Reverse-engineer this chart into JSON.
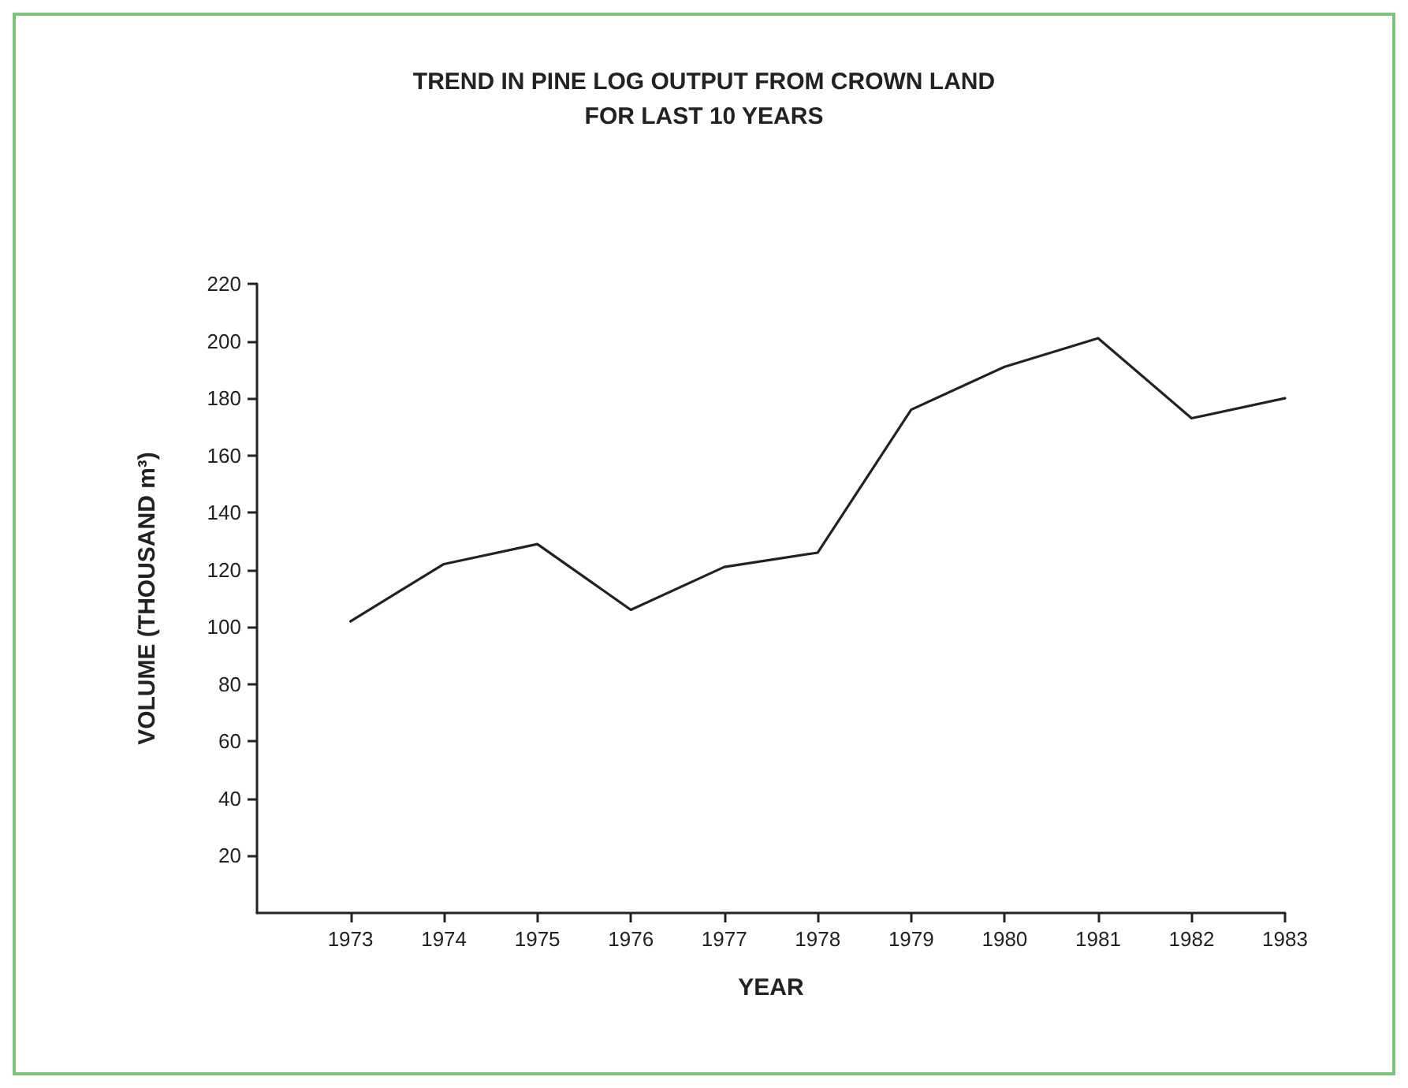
{
  "chart_data": {
    "type": "line",
    "title": "TREND IN PINE LOG OUTPUT FROM CROWN LAND\nFOR LAST 10 YEARS",
    "xlabel": "YEAR",
    "ylabel": "VOLUME (THOUSAND m³)",
    "x": [
      1973,
      1974,
      1975,
      1976,
      1977,
      1978,
      1979,
      1980,
      1981,
      1982,
      1983
    ],
    "series": [
      {
        "color": "#222222",
        "values": [
          102,
          122,
          129,
          106,
          121,
          126,
          176,
          191,
          201,
          173,
          180
        ]
      }
    ],
    "xlim": [
      1972,
      1983
    ],
    "xticks": [
      1973,
      1974,
      1975,
      1976,
      1977,
      1978,
      1979,
      1980,
      1981,
      1982,
      1983
    ],
    "ylim": [
      0,
      220
    ],
    "yticks": [
      20,
      40,
      60,
      80,
      100,
      120,
      140,
      160,
      180,
      200,
      220
    ],
    "grid": false,
    "marker": "none",
    "line_style": "solid"
  }
}
